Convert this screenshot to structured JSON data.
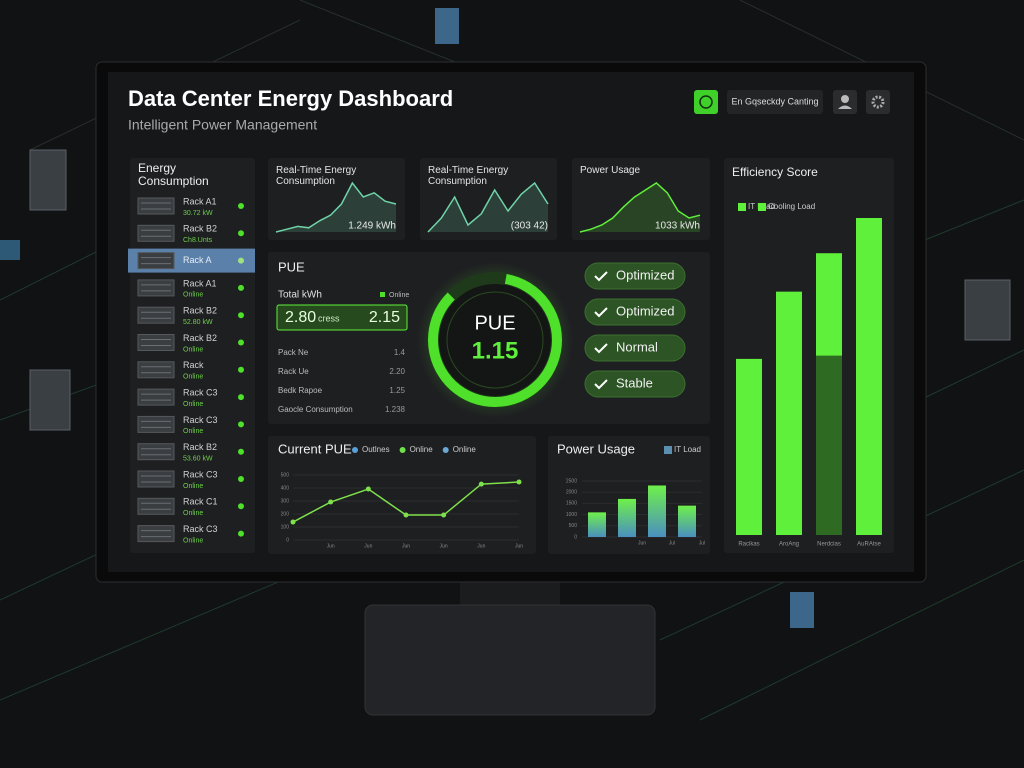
{
  "header": {
    "title": "Data Center Energy Dashboard",
    "subtitle": "Intelligent Power Management",
    "menu_button": "En Gqseckdy Canting"
  },
  "sidebar": {
    "title": "Energy Consumption",
    "racks": [
      {
        "name": "Rack A1",
        "status": "30.72 kW"
      },
      {
        "name": "Rack B2",
        "status": "Ch8.Unts"
      },
      {
        "name": "Rack A",
        "selected": true
      },
      {
        "name": "Rack A1",
        "status": "Online"
      },
      {
        "name": "Rack B2",
        "status": "52.80 kW"
      },
      {
        "name": "Rack B2",
        "status": "Online"
      },
      {
        "name": "Rack",
        "status": "Online"
      },
      {
        "name": "Rack C3",
        "status": "Online"
      },
      {
        "name": "Rack C3",
        "status": "Online"
      },
      {
        "name": "Rack B2",
        "status": "53.60 kW"
      },
      {
        "name": "Rack C3",
        "status": "Online"
      },
      {
        "name": "Rack C1",
        "status": "Online"
      },
      {
        "name": "Rack C3",
        "status": "Online"
      }
    ]
  },
  "cards": [
    {
      "title": "Real-Time Energy Consumption",
      "value_label": "1.249 kWh",
      "color": "#6fd3a8",
      "values": [
        10,
        12,
        14,
        13,
        18,
        22,
        30,
        45,
        35,
        38,
        32,
        30
      ]
    },
    {
      "title": "Real-Time Energy Consumption",
      "value_label": "(303 42)",
      "color": "#6fd3a8",
      "values": [
        15,
        25,
        40,
        20,
        28,
        45,
        30,
        42,
        50,
        35
      ]
    },
    {
      "title": "Power Usage",
      "value_label": "1033 kWh",
      "color": "#5ef03a",
      "values": [
        10,
        12,
        15,
        20,
        28,
        35,
        40,
        45,
        38,
        25,
        20,
        22
      ]
    }
  ],
  "pue_panel": {
    "title": "PUE",
    "total_label": "Total kWh",
    "online_label": "Online",
    "total_values": [
      "2.80",
      "cress",
      "2.15"
    ],
    "rows": [
      [
        "Pack Ne",
        "1.4"
      ],
      [
        "Rack Ue",
        "2.20"
      ],
      [
        "Bedk Rapoe",
        "1.25"
      ],
      [
        "Gaocle Consumption",
        "1.238"
      ]
    ],
    "gauge_label": "PUE",
    "gauge_value": "1.15",
    "statuses": [
      "Optimized",
      "Optimized",
      "Normal",
      "Stable"
    ]
  },
  "current_pue": {
    "type": "line",
    "title": "Current PUE",
    "color": "#7ee04a",
    "legend": [
      {
        "label": "Outlnes",
        "color": "#5aa0d8"
      },
      {
        "label": "Online",
        "color": "#6de04a"
      },
      {
        "label": "Online",
        "color": "#6aa8d8"
      }
    ],
    "categories": [
      null,
      "Jun",
      "Jun",
      "Jun",
      "Jun",
      "Jun",
      "Jun"
    ],
    "values": [
      138,
      292,
      392,
      192,
      192,
      430,
      446
    ],
    "ylim": [
      0,
      500
    ],
    "yticks": [
      0,
      100,
      200,
      300,
      400,
      500
    ],
    "grid": true
  },
  "power_usage": {
    "type": "bar",
    "title": "Power Usage",
    "legend": [
      {
        "label": "IT Load",
        "color": "#5a8fb0"
      }
    ],
    "categories": [
      null,
      "Jun",
      "Jul",
      "Jul"
    ],
    "values": [
      1100,
      1700,
      2300,
      1400
    ],
    "ylim": [
      0,
      2500
    ],
    "yticks": [
      0,
      500,
      1000,
      1500,
      2000,
      2500
    ],
    "grid": true
  },
  "efficiency": {
    "type": "stacked-bar",
    "title": "Efficiency Score",
    "categories": [
      "Racikas",
      "AroAng",
      "Nerdcias",
      "AuRAtse"
    ],
    "series": [
      {
        "name": "IT Load",
        "color": "#5ef03a",
        "values": [
          55,
          76,
          32,
          99
        ]
      },
      {
        "name": "Cooling Load",
        "color": "#2f6a23",
        "values": [
          0,
          0,
          56,
          0
        ]
      }
    ]
  }
}
